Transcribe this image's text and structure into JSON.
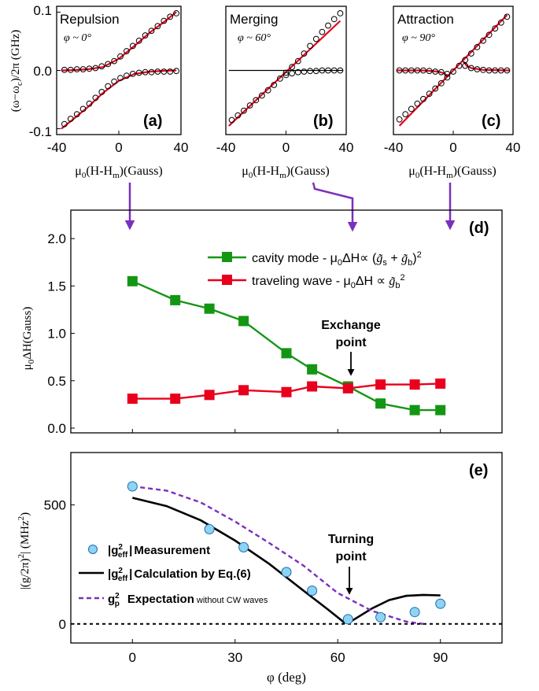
{
  "colors": {
    "red": "#e8001c",
    "green": "#149614",
    "purple": "#7b2fbe",
    "marker_blue": "#8fd3f4",
    "black": "#000000"
  },
  "chart_data": [
    {
      "id": "a",
      "type": "scatter",
      "panel_label": "(a)",
      "title": "Repulsion",
      "subtitle": "φ ~ 0°",
      "xlabel": "μ0(H-Hm)(Gauss)",
      "ylabel": "(ω−ωc)/2π (GHz)",
      "xlim": [
        -40,
        40
      ],
      "ylim": [
        -0.11,
        0.11
      ],
      "xticks": [
        -40,
        0,
        40
      ],
      "yticks": [
        0.1,
        0.0,
        -0.1
      ],
      "yticklabels": [
        "0.1",
        "0.0",
        "-0.1"
      ],
      "grid": false,
      "series": [
        {
          "style": "open-circle",
          "x": [
            -35,
            -31,
            -27,
            -23,
            -19,
            -15,
            -11,
            -7,
            -3,
            1,
            5,
            9,
            13,
            17,
            21,
            25,
            29,
            33,
            37
          ],
          "y": [
            0.001,
            0.001,
            0.002,
            0.002,
            0.003,
            0.004,
            0.007,
            0.011,
            0.016,
            0.024,
            0.033,
            0.042,
            0.051,
            0.06,
            0.068,
            0.076,
            0.085,
            0.092,
            0.098
          ]
        },
        {
          "style": "open-circle",
          "x": [
            -35,
            -31,
            -27,
            -23,
            -19,
            -15,
            -11,
            -7,
            -3,
            1,
            5,
            9,
            13,
            17,
            21,
            25,
            29,
            33,
            37
          ],
          "y": [
            -0.092,
            -0.083,
            -0.075,
            -0.066,
            -0.057,
            -0.047,
            -0.037,
            -0.027,
            -0.019,
            -0.013,
            -0.009,
            -0.006,
            -0.004,
            -0.003,
            -0.003,
            -0.002,
            -0.002,
            -0.002,
            -0.001
          ]
        },
        {
          "style": "red-line",
          "x": [
            -37,
            -30,
            -20,
            -10,
            0,
            10,
            20,
            30,
            37
          ],
          "y": [
            0.0,
            0.0005,
            0.002,
            0.006,
            0.02,
            0.042,
            0.065,
            0.085,
            0.1
          ]
        },
        {
          "style": "red-line",
          "x": [
            -37,
            -30,
            -20,
            -10,
            0,
            10,
            20,
            30,
            37
          ],
          "y": [
            -0.1,
            -0.085,
            -0.063,
            -0.038,
            -0.018,
            -0.006,
            -0.002,
            -0.0005,
            0.0
          ]
        }
      ]
    },
    {
      "id": "b",
      "type": "scatter",
      "panel_label": "(b)",
      "title": "Merging",
      "subtitle": "φ ~ 60°",
      "xlabel": "μ0(H-Hm)(Gauss)",
      "xlim": [
        -40,
        40
      ],
      "ylim": [
        -0.11,
        0.11
      ],
      "xticks": [
        -40,
        0,
        40
      ],
      "grid": false,
      "series": [
        {
          "style": "open-circle",
          "x": [
            -36,
            -32,
            -28,
            -24,
            -20,
            -16,
            -12,
            -8,
            -4,
            0,
            4,
            8,
            12,
            16,
            20,
            24,
            28,
            32,
            36
          ],
          "y": [
            -0.085,
            -0.077,
            -0.069,
            -0.06,
            -0.051,
            -0.043,
            -0.034,
            -0.025,
            -0.014,
            -0.004,
            0.006,
            0.016,
            0.029,
            0.042,
            0.054,
            0.066,
            0.077,
            0.088,
            0.098
          ]
        },
        {
          "style": "open-circle",
          "x": [
            0,
            4,
            8,
            12,
            16,
            20,
            24,
            28,
            32,
            36
          ],
          "y": [
            -0.008,
            -0.005,
            -0.003,
            -0.002,
            -0.001,
            -0.001,
            0.0,
            0.0,
            0.0,
            0.0
          ]
        },
        {
          "style": "red-line",
          "x": [
            -38,
            36
          ],
          "y": [
            -0.095,
            0.085
          ]
        },
        {
          "style": "black-line",
          "x": [
            -38,
            38
          ],
          "y": [
            0.0,
            0.0
          ]
        }
      ]
    },
    {
      "id": "c",
      "type": "scatter",
      "panel_label": "(c)",
      "title": "Attraction",
      "subtitle": "φ ~ 90°",
      "xlabel": "μ0(H-Hm)(Gauss)",
      "xlim": [
        -40,
        40
      ],
      "ylim": [
        -0.11,
        0.11
      ],
      "xticks": [
        -40,
        0,
        40
      ],
      "grid": false,
      "series": [
        {
          "style": "open-circle",
          "x": [
            -36,
            -32,
            -28,
            -24,
            -20,
            -16,
            -12,
            -8,
            -4,
            0,
            4,
            8,
            12,
            16,
            20,
            24,
            28,
            32,
            36
          ],
          "y": [
            -0.084,
            -0.075,
            -0.066,
            -0.057,
            -0.049,
            -0.04,
            -0.031,
            -0.022,
            -0.012,
            -0.002,
            0.008,
            0.018,
            0.029,
            0.04,
            0.051,
            0.061,
            0.072,
            0.082,
            0.092
          ]
        },
        {
          "style": "open-circle",
          "x": [
            -36,
            -32,
            -28,
            -24,
            -20,
            -16,
            -12,
            -8,
            -4
          ],
          "y": [
            0.0,
            0.0,
            0.0,
            0.0,
            0.0,
            -0.001,
            -0.002,
            -0.003,
            -0.006
          ]
        },
        {
          "style": "open-circle",
          "x": [
            8,
            12,
            16,
            20,
            24,
            28,
            32,
            36
          ],
          "y": [
            0.008,
            0.004,
            0.002,
            0.001,
            0.0,
            0.0,
            0.0,
            0.0
          ]
        },
        {
          "style": "red-line",
          "x": [
            -36,
            36
          ],
          "y": [
            -0.095,
            0.095
          ]
        },
        {
          "style": "red-line",
          "x": [
            -38,
            -20,
            -10,
            -6,
            -4
          ],
          "y": [
            0.0,
            0.0,
            -0.002,
            -0.005,
            -0.009
          ]
        },
        {
          "style": "red-line",
          "x": [
            7,
            9,
            12,
            20,
            38
          ],
          "y": [
            0.015,
            0.008,
            0.004,
            0.001,
            0.0
          ]
        }
      ]
    },
    {
      "id": "d",
      "type": "line",
      "panel_label": "(d)",
      "ylabel": "μ0ΔH(Gauss)",
      "xlim": [
        -18,
        108
      ],
      "ylim": [
        -0.05,
        2.3
      ],
      "yticks": [
        0.0,
        0.5,
        1.0,
        1.5,
        2.0
      ],
      "yticklabels": [
        "0.0",
        "0.5",
        "1.0",
        "1.5",
        "2.0"
      ],
      "grid": false,
      "series": [
        {
          "name": "cavity mode - μ0ΔH∝ (g̃s + g̃b)²",
          "color": "#149614",
          "marker": "square",
          "x": [
            0,
            12.5,
            22.5,
            32.5,
            45,
            52.5,
            63,
            72.5,
            82.5,
            90
          ],
          "y": [
            1.55,
            1.35,
            1.26,
            1.13,
            0.79,
            0.62,
            0.44,
            0.26,
            0.19,
            0.19
          ]
        },
        {
          "name": "traveling wave - μ0ΔH ∝ g̃b²",
          "color": "#e8001c",
          "marker": "square",
          "x": [
            0,
            12.5,
            22.5,
            32.5,
            45,
            52.5,
            63,
            72.5,
            82.5,
            90
          ],
          "y": [
            0.31,
            0.31,
            0.35,
            0.4,
            0.38,
            0.44,
            0.42,
            0.46,
            0.46,
            0.47
          ]
        }
      ],
      "annotation": {
        "line1": "Exchange",
        "line2": "point",
        "x": 63,
        "y": 0.44
      }
    },
    {
      "id": "e",
      "type": "scatter",
      "panel_label": "(e)",
      "xlabel": "φ (deg)",
      "ylabel": "|(g/2π)²| (MHz²)",
      "xlim": [
        -18,
        108
      ],
      "ylim": [
        -80,
        720
      ],
      "xticks": [
        0,
        30,
        60,
        90
      ],
      "yticks": [
        0,
        500
      ],
      "grid": false,
      "series": [
        {
          "name": "|g²eff|Measurement",
          "style": "circle",
          "color": "#8fd3f4",
          "x": [
            0,
            22.5,
            32.5,
            45,
            52.5,
            63,
            72.5,
            82.5,
            90
          ],
          "y": [
            578,
            398,
            322,
            218,
            140,
            20,
            28,
            50,
            85
          ]
        },
        {
          "name": "|g²eff|Calculation by Eq.(6)",
          "style": "solid",
          "color": "#000000",
          "x": [
            0,
            10,
            20,
            30,
            40,
            50,
            57,
            62,
            64,
            70,
            75,
            80,
            85,
            90
          ],
          "y": [
            530,
            495,
            435,
            350,
            252,
            140,
            62,
            5,
            12,
            65,
            100,
            118,
            122,
            120
          ]
        },
        {
          "name": "g²p  Expectation without CW waves",
          "style": "dashed",
          "color": "#7b2fbe",
          "x": [
            0,
            10,
            20,
            30,
            40,
            50,
            60,
            70,
            80,
            85
          ],
          "y": [
            578,
            560,
            510,
            430,
            340,
            245,
            130,
            55,
            10,
            0
          ]
        },
        {
          "style": "dotted-baseline",
          "color": "#000000",
          "x": [
            -18,
            108
          ],
          "y": [
            0,
            0
          ]
        }
      ],
      "legend": [
        {
          "symbol": "|g",
          "sup": "2",
          "sub": "eff",
          "close": "|",
          "text": "Measurement"
        },
        {
          "symbol": "|g",
          "sup": "2",
          "sub": "eff",
          "close": "|",
          "text": "Calculation by Eq.(6)"
        },
        {
          "symbol": "g",
          "sup": "2",
          "sub": "p",
          "close": "",
          "text": "Expectation",
          "small": "without CW waves"
        }
      ],
      "annotation": {
        "line1": "Turning",
        "line2": "point",
        "x": 63,
        "y": 15
      }
    }
  ],
  "labels": {
    "x_axis_a_b_c": [
      "μ",
      "0",
      "(H-H",
      "m",
      ")(Gauss)"
    ],
    "d_legend_green": "cavity mode - μ0ΔH∝ (g̃s + g̃b)²",
    "d_legend_red": "traveling wave - μ0ΔH ∝ g̃b²"
  }
}
